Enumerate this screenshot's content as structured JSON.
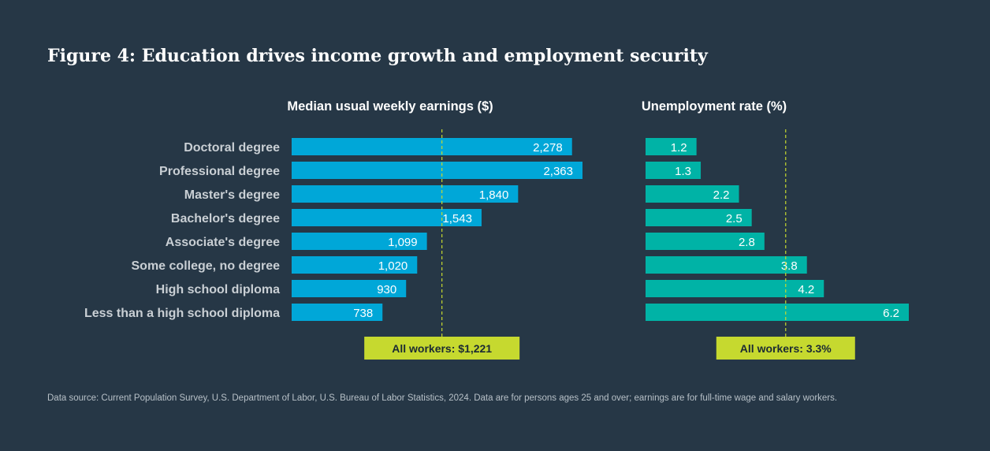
{
  "title": "Figure 4: Education drives income growth and employment security",
  "footnote": "Data source: Current Population Survey, U.S. Department of Labor, U.S. Bureau of Labor Statistics, 2024. Data are for persons ages 25 and over; earnings are for full-time wage and salary workers.",
  "colors": {
    "earnings_bar": "#00a7d8",
    "unemployment_bar": "#00b3a6",
    "reference_box": "#c6d92f",
    "reference_line": "#c6d92f"
  },
  "chart_data": [
    {
      "type": "bar",
      "orientation": "horizontal",
      "title": "Median usual weekly earnings ($)",
      "categories": [
        "Doctoral degree",
        "Professional degree",
        "Master's degree",
        "Bachelor's degree",
        "Associate's degree",
        "Some college, no degree",
        "High school diploma",
        "Less than a high school diploma"
      ],
      "values": [
        2278,
        2363,
        1840,
        1543,
        1099,
        1020,
        930,
        738
      ],
      "value_labels": [
        "2,278",
        "2,363",
        "1,840",
        "1,543",
        "1,099",
        "1,020",
        "930",
        "738"
      ],
      "reference_value": 1221,
      "reference_label": "All workers: $1,221",
      "xlim": [
        0,
        2363
      ]
    },
    {
      "type": "bar",
      "orientation": "horizontal",
      "title": "Unemployment rate (%)",
      "categories": [
        "Doctoral degree",
        "Professional degree",
        "Master's degree",
        "Bachelor's degree",
        "Associate's degree",
        "Some college, no degree",
        "High school diploma",
        "Less than a high school diploma"
      ],
      "values": [
        1.2,
        1.3,
        2.2,
        2.5,
        2.8,
        3.8,
        4.2,
        6.2
      ],
      "value_labels": [
        "1.2",
        "1.3",
        "2.2",
        "2.5",
        "2.8",
        "3.8",
        "4.2",
        "6.2"
      ],
      "reference_value": 3.3,
      "reference_label": "All workers: 3.3%",
      "xlim": [
        0,
        6.2
      ]
    }
  ]
}
